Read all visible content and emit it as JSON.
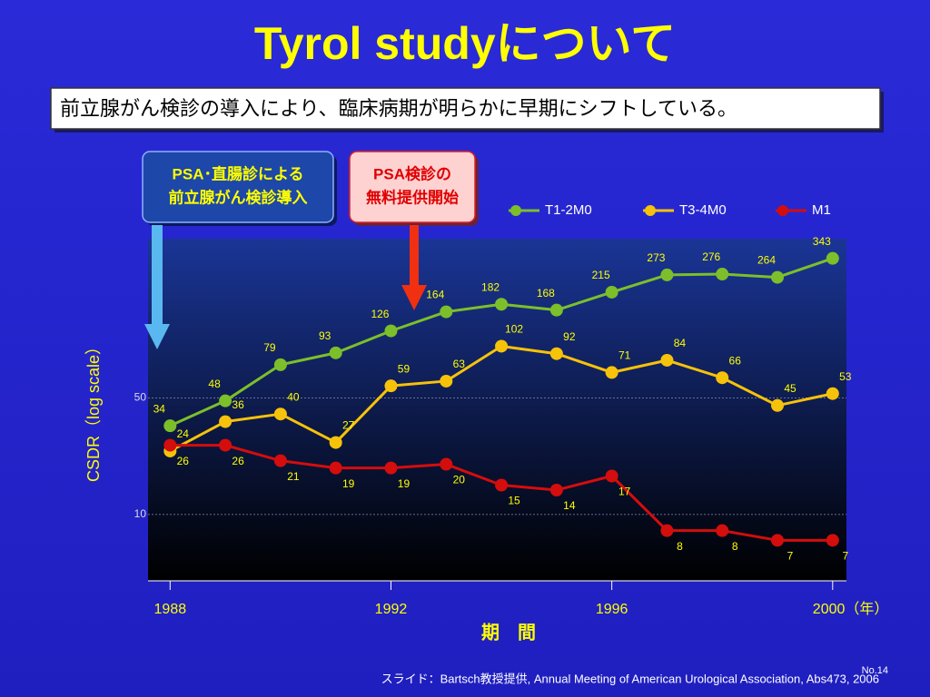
{
  "chart_data": {
    "type": "line",
    "title": "Tyrol studyについて",
    "subtitle": "前立腺がん検診の導入により、臨床病期が明らかに早期にシフトしている。",
    "annotations": [
      [
        "PSA･直腸診による",
        "前立腺がん検診導入"
      ],
      [
        "PSA検診の",
        "無料提供開始"
      ]
    ],
    "x_label": "期　間",
    "y_label": "CSDR（log scale）",
    "source": "スライド：Bartsch教授提供, Annual Meeting of American Urological Association, Abs473, 2006",
    "page_number": "No.14",
    "x": [
      1988,
      1989,
      1990,
      1991,
      1992,
      1993,
      1994,
      1995,
      1996,
      1997,
      1998,
      1999,
      2000
    ],
    "series": [
      {
        "name": "T1-2M0",
        "color": "#7cbf2a",
        "values": [
          34,
          48,
          79,
          93,
          126,
          164,
          182,
          168,
          215,
          273,
          276,
          264,
          343
        ]
      },
      {
        "name": "T3-4M0",
        "color": "#f7c20a",
        "values": [
          24,
          36,
          40,
          27,
          59,
          63,
          102,
          92,
          71,
          84,
          66,
          45,
          53
        ]
      },
      {
        "name": "M1",
        "color": "#d40d0d",
        "values": [
          26,
          26,
          21,
          19,
          19,
          20,
          15,
          14,
          17,
          8,
          8,
          7,
          7
        ]
      }
    ],
    "xlim": [
      1987.6,
      2000.25
    ],
    "xticks": [
      1988,
      1992,
      1996,
      {
        "value": 2000,
        "label": "2000（年）"
      }
    ],
    "ylim": [
      4,
      450
    ],
    "yticks": [
      10,
      50
    ],
    "log_scale": true,
    "grid": true,
    "legend": "top-right"
  }
}
